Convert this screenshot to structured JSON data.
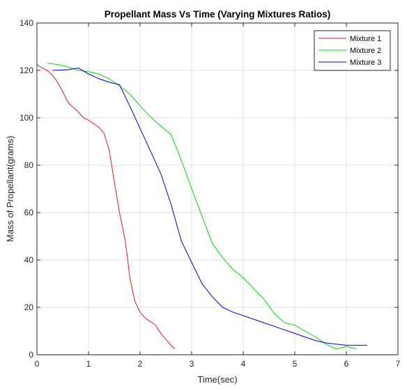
{
  "chart_data": {
    "type": "line",
    "title": "Propellant Mass Vs Time (Varying Mixtures Ratios)",
    "xlabel": "Time(sec)",
    "ylabel": "Mass of Propellant(grams)",
    "xlim": [
      0,
      7
    ],
    "ylim": [
      0,
      140
    ],
    "xticks": [
      0,
      1,
      2,
      3,
      4,
      5,
      6,
      7
    ],
    "yticks": [
      0,
      20,
      40,
      60,
      80,
      100,
      120,
      140
    ],
    "grid": true,
    "legend_position": "top-right",
    "series": [
      {
        "name": "Mixture 1",
        "color": "#e31a1c",
        "x": [
          0.0,
          0.1,
          0.2,
          0.3,
          0.4,
          0.5,
          0.6,
          0.7,
          0.8,
          0.9,
          1.0,
          1.1,
          1.2,
          1.3,
          1.4,
          1.5,
          1.6,
          1.7,
          1.75,
          1.8,
          1.9,
          2.0,
          2.1,
          2.2,
          2.3,
          2.4,
          2.5,
          2.6,
          2.67
        ],
        "values": [
          122.5,
          121,
          120,
          118,
          115,
          111,
          106.5,
          104.5,
          102.5,
          100,
          99,
          97.5,
          96,
          93.5,
          86.5,
          73,
          60,
          49.5,
          42,
          32.5,
          22.5,
          18,
          15.5,
          14,
          12.5,
          9,
          6.5,
          4,
          2.5
        ]
      },
      {
        "name": "Mixture 2",
        "color": "#00e000",
        "x": [
          0.2,
          0.4,
          0.6,
          0.8,
          1.0,
          1.2,
          1.4,
          1.6,
          1.8,
          2.0,
          2.2,
          2.4,
          2.6,
          2.8,
          3.0,
          3.2,
          3.4,
          3.6,
          3.8,
          4.0,
          4.2,
          4.4,
          4.6,
          4.8,
          5.0,
          5.2,
          5.4,
          5.6,
          5.8,
          6.0,
          6.2
        ],
        "values": [
          123,
          122.5,
          121.5,
          120,
          119.5,
          118.5,
          116.5,
          113.5,
          110,
          105,
          100.5,
          96.5,
          93,
          82,
          70,
          58.5,
          47,
          41,
          36,
          32.5,
          28,
          23.5,
          17.5,
          13.5,
          12.5,
          10,
          7.5,
          4.5,
          2.5,
          3.5,
          2.5
        ]
      },
      {
        "name": "Mixture 3",
        "color": "#0000cc",
        "x": [
          0.3,
          0.6,
          0.8,
          1.0,
          1.2,
          1.4,
          1.6,
          1.8,
          2.0,
          2.2,
          2.4,
          2.6,
          2.8,
          3.0,
          3.2,
          3.4,
          3.6,
          3.8,
          4.0,
          4.2,
          4.4,
          4.6,
          4.8,
          5.0,
          5.2,
          5.4,
          5.6,
          5.8,
          6.0,
          6.2,
          6.4
        ],
        "values": [
          120,
          120.3,
          121,
          118.5,
          116.5,
          115,
          114,
          105,
          95.5,
          86,
          76.5,
          63.5,
          48,
          39,
          30,
          24.5,
          20,
          18,
          16.5,
          15,
          13.5,
          12,
          10.5,
          9,
          7.5,
          6,
          5,
          4.5,
          4,
          4,
          4
        ]
      }
    ]
  }
}
